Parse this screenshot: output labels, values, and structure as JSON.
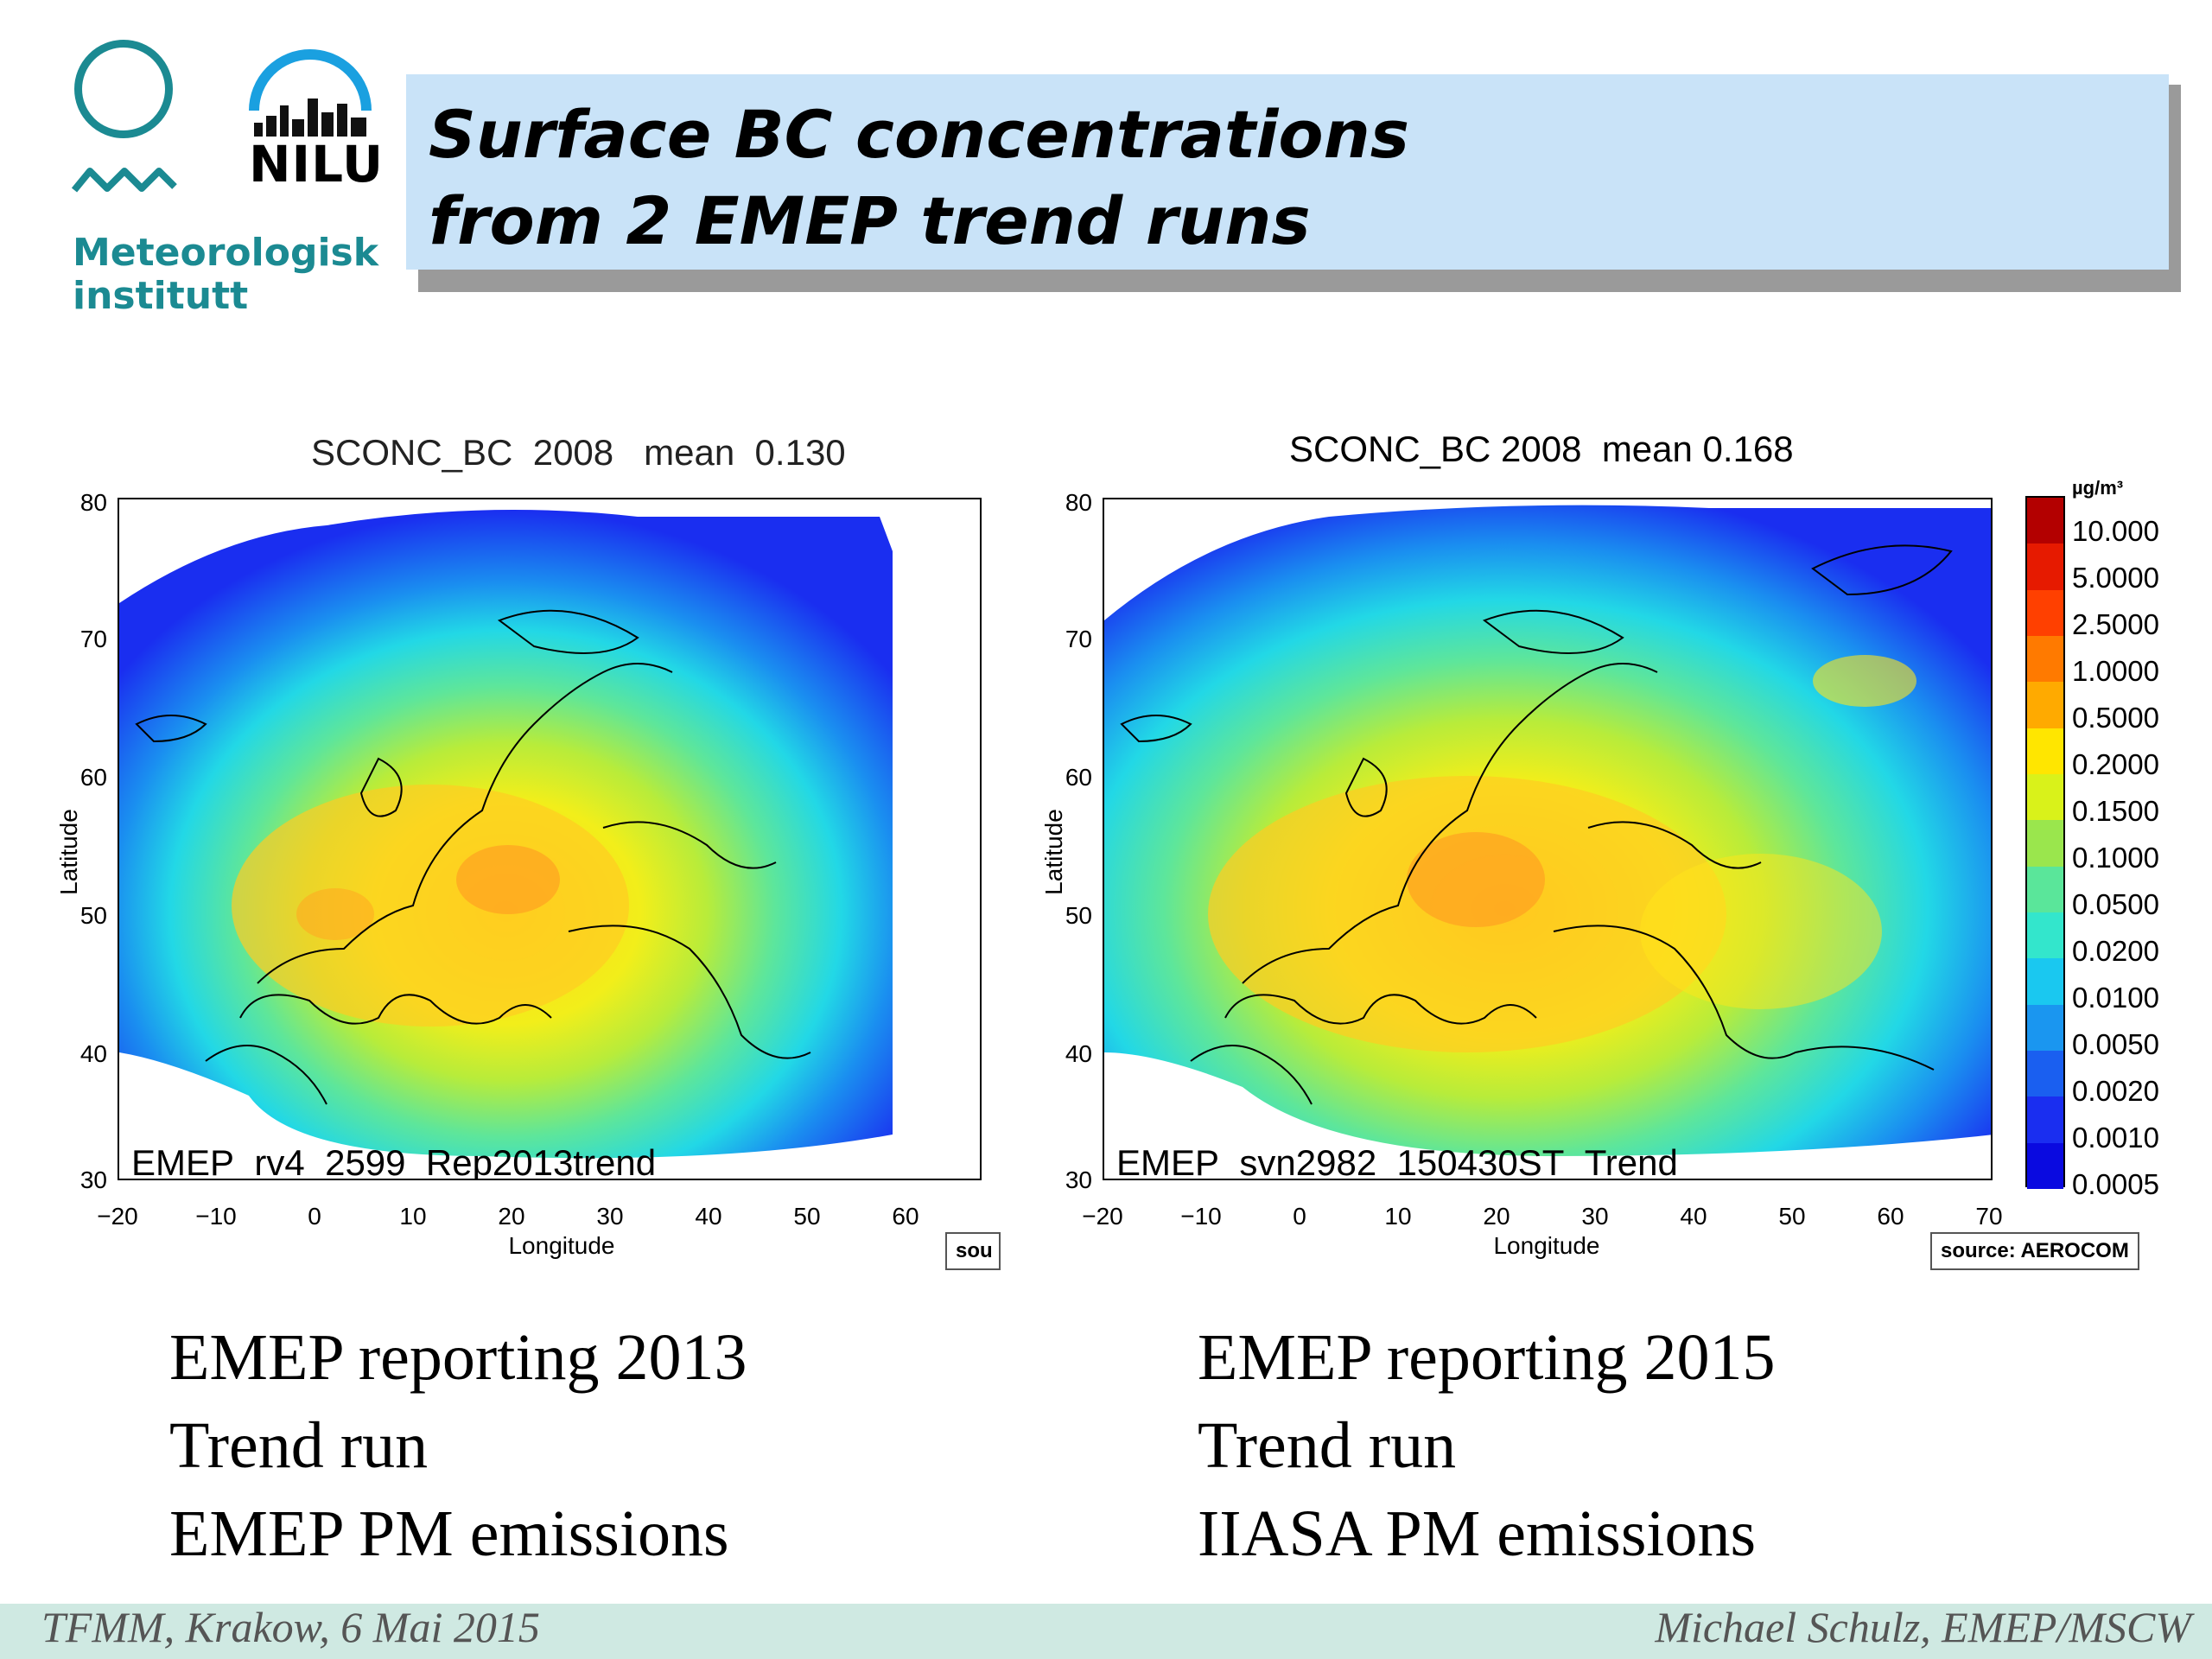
{
  "logos": {
    "met_line1": "Meteorologisk",
    "met_line2": "institutt",
    "nilu": "NILU"
  },
  "title": {
    "line1": "Surface BC concentrations",
    "line2": "from 2 EMEP trend runs"
  },
  "maps": [
    {
      "title": "SCONC_BC  2008   mean  0.130",
      "run_label": "EMEP_rv4_2599_Rep2013trend",
      "x_label": "Longitude",
      "y_label": "Latitude",
      "x_ticks": [
        "−20",
        "−10",
        "0",
        "10",
        "20",
        "30",
        "40",
        "50",
        "60"
      ],
      "y_ticks": [
        "80",
        "70",
        "60",
        "50",
        "40",
        "30"
      ],
      "source": "sou"
    },
    {
      "title": "SCONC_BC 2008  mean 0.168",
      "run_label": "EMEP_svn2982_150430ST_Trend",
      "x_label": "Longitude",
      "y_label": "Latitude",
      "x_ticks": [
        "−20",
        "−10",
        "0",
        "10",
        "20",
        "30",
        "40",
        "50",
        "60",
        "70"
      ],
      "y_ticks": [
        "80",
        "70",
        "60",
        "50",
        "40",
        "30"
      ],
      "source": "source: AEROCOM"
    }
  ],
  "colorbar": {
    "unit": "µg/m³",
    "levels": [
      "10.000",
      "5.0000",
      "2.5000",
      "1.0000",
      "0.5000",
      "0.2000",
      "0.1500",
      "0.1000",
      "0.0500",
      "0.0200",
      "0.0100",
      "0.0050",
      "0.0020",
      "0.0010",
      "0.0005"
    ],
    "colors": [
      "#b30000",
      "#e61a00",
      "#ff4000",
      "#ff7a00",
      "#ffaa00",
      "#ffe600",
      "#d9f21a",
      "#9ae64d",
      "#5ae69a",
      "#33e6cc",
      "#1ac8f0",
      "#1a96f0",
      "#1a5ff0",
      "#1a2ef0",
      "#0a0ae0"
    ]
  },
  "captions": {
    "left": [
      "EMEP reporting 2013",
      "Trend run",
      "EMEP PM emissions"
    ],
    "right": [
      "EMEP reporting 2015",
      "Trend run",
      "IIASA PM emissions"
    ]
  },
  "footer": {
    "left": "TFMM, Krakow, 6 Mai 2015",
    "right": "Michael Schulz, EMEP/MSCW"
  }
}
